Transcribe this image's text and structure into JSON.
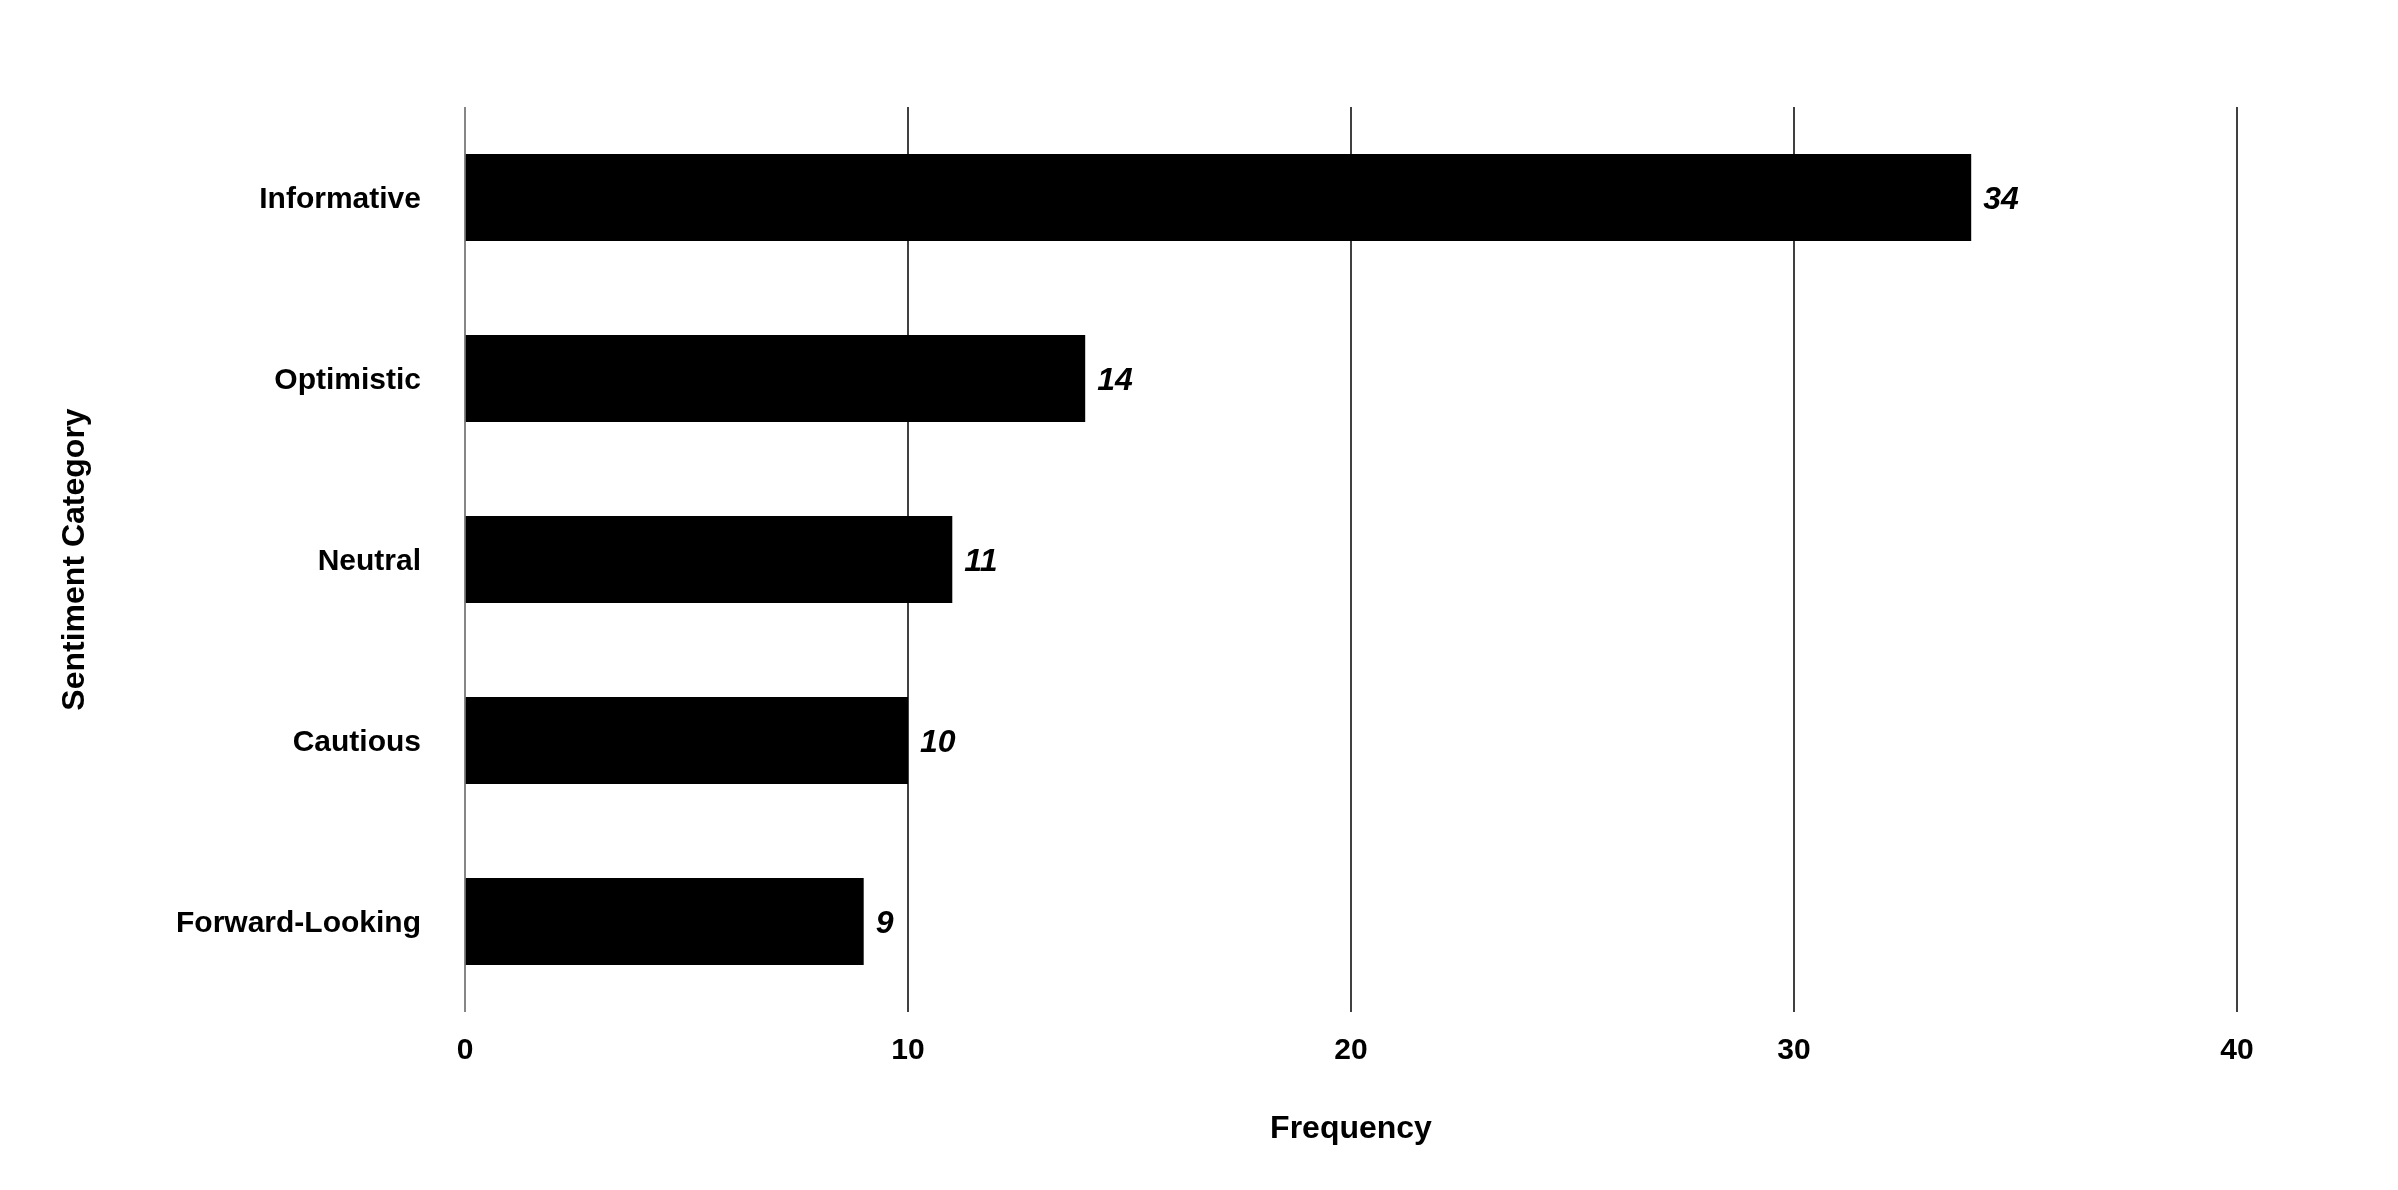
{
  "chart_data": {
    "type": "bar",
    "orientation": "horizontal",
    "xlabel": "Frequency",
    "ylabel": "Sentiment Category",
    "categories": [
      "Informative",
      "Optimistic",
      "Neutral",
      "Cautious",
      "Forward-Looking"
    ],
    "values": [
      34,
      14,
      11,
      10,
      9
    ],
    "color": "#000000",
    "xlim": [
      0,
      40
    ],
    "xticks": [
      0,
      10,
      20,
      30,
      40
    ],
    "grid": "x",
    "data_labels": true
  }
}
